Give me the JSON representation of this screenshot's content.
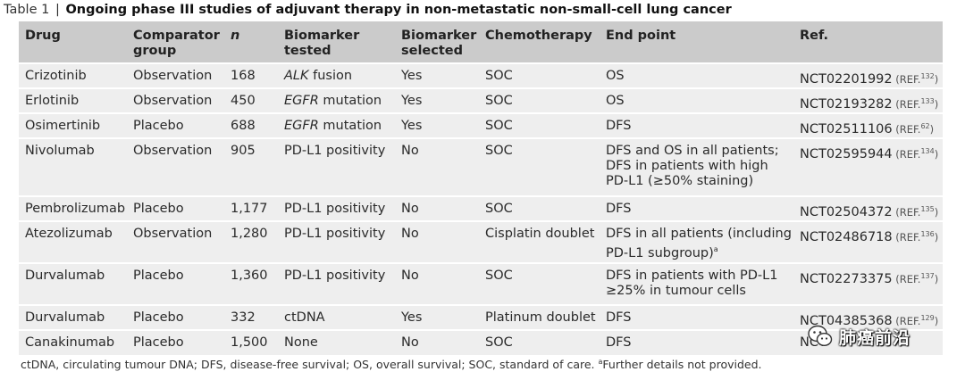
{
  "caption": {
    "label": "Table 1",
    "separator": "|",
    "title": "Ongoing phase III studies of adjuvant therapy in non-metastatic non-small-cell lung cancer"
  },
  "headers": [
    "Drug",
    "Comparator group",
    "n",
    "Biomarker tested",
    "Biomarker selected",
    "Chemotherapy",
    "End point",
    "Ref."
  ],
  "rows": [
    {
      "drug": "Crizotinib",
      "comparator": "Observation",
      "n": "168",
      "biomarker_gene": "ALK",
      "biomarker_rest": " fusion",
      "selected": "Yes",
      "chemo": "SOC",
      "endpoint": "OS",
      "ref_id": "NCT02201992",
      "ref_note": "(REF.",
      "ref_num": "132",
      "ref_close": ")"
    },
    {
      "drug": "Erlotinib",
      "comparator": "Observation",
      "n": "450",
      "biomarker_gene": "EGFR",
      "biomarker_rest": " mutation",
      "selected": "Yes",
      "chemo": "SOC",
      "endpoint": "OS",
      "ref_id": "NCT02193282",
      "ref_note": "(REF.",
      "ref_num": "133",
      "ref_close": ")"
    },
    {
      "drug": "Osimertinib",
      "comparator": "Placebo",
      "n": "688",
      "biomarker_gene": "EGFR",
      "biomarker_rest": " mutation",
      "selected": "Yes",
      "chemo": "SOC",
      "endpoint": "DFS",
      "ref_id": "NCT02511106",
      "ref_note": "(REF.",
      "ref_num": "62",
      "ref_close": ")"
    },
    {
      "drug": "Nivolumab",
      "comparator": "Observation",
      "n": "905",
      "biomarker_gene": "",
      "biomarker_rest": "PD-L1 positivity",
      "selected": "No",
      "chemo": "SOC",
      "endpoint": "DFS and OS in all patients; DFS in patients with high PD-L1 (≥50% staining)",
      "ref_id": "NCT02595944",
      "ref_note": "(REF.",
      "ref_num": "134",
      "ref_close": ")"
    },
    {
      "drug": "Pembrolizumab",
      "comparator": "Placebo",
      "n": "1,177",
      "biomarker_gene": "",
      "biomarker_rest": "PD-L1 positivity",
      "selected": "No",
      "chemo": "SOC",
      "endpoint": "DFS",
      "ref_id": "NCT02504372",
      "ref_note": "(REF.",
      "ref_num": "135",
      "ref_close": ")"
    },
    {
      "drug": "Atezolizumab",
      "comparator": "Observation",
      "n": "1,280",
      "biomarker_gene": "",
      "biomarker_rest": "PD-L1 positivity",
      "selected": "No",
      "chemo": "Cisplatin doublet",
      "endpoint": "DFS in all patients (including PD-L1 subgroup)",
      "endpoint_sup": "a",
      "ref_id": "NCT02486718",
      "ref_note": "(REF.",
      "ref_num": "136",
      "ref_close": ")"
    },
    {
      "drug": "Durvalumab",
      "comparator": "Placebo",
      "n": "1,360",
      "biomarker_gene": "",
      "biomarker_rest": "PD-L1 positivity",
      "selected": "No",
      "chemo": "SOC",
      "endpoint": "DFS in patients with PD-L1 ≥25% in tumour cells",
      "ref_id": "NCT02273375",
      "ref_note": "(REF.",
      "ref_num": "137",
      "ref_close": ")"
    },
    {
      "drug": "Durvalumab",
      "comparator": "Placebo",
      "n": "332",
      "biomarker_gene": "",
      "biomarker_rest": "ctDNA",
      "selected": "Yes",
      "chemo": "Platinum doublet",
      "endpoint": "DFS",
      "ref_id": "NCT04385368",
      "ref_note": "(REF.",
      "ref_num": "129",
      "ref_close": ")"
    },
    {
      "drug": "Canakinumab",
      "comparator": "Placebo",
      "n": "1,500",
      "biomarker_gene": "",
      "biomarker_rest": "None",
      "selected": "No",
      "chemo": "SOC",
      "endpoint": "DFS",
      "ref_id": "NCT",
      "ref_note": "",
      "ref_num": "",
      "ref_close": ""
    }
  ],
  "footnote": {
    "text": "ctDNA, circulating tumour DNA; DFS, disease-free survival; OS, overall survival; SOC, standard of care. ",
    "sup": "a",
    "text2": "Further details not provided."
  },
  "watermark": {
    "text": "肺癌前沿",
    "icon": "wechat-icon"
  },
  "colors": {
    "header_bg": "#cbcbcb",
    "row_bg": "#eeeeee",
    "text": "#222222"
  }
}
